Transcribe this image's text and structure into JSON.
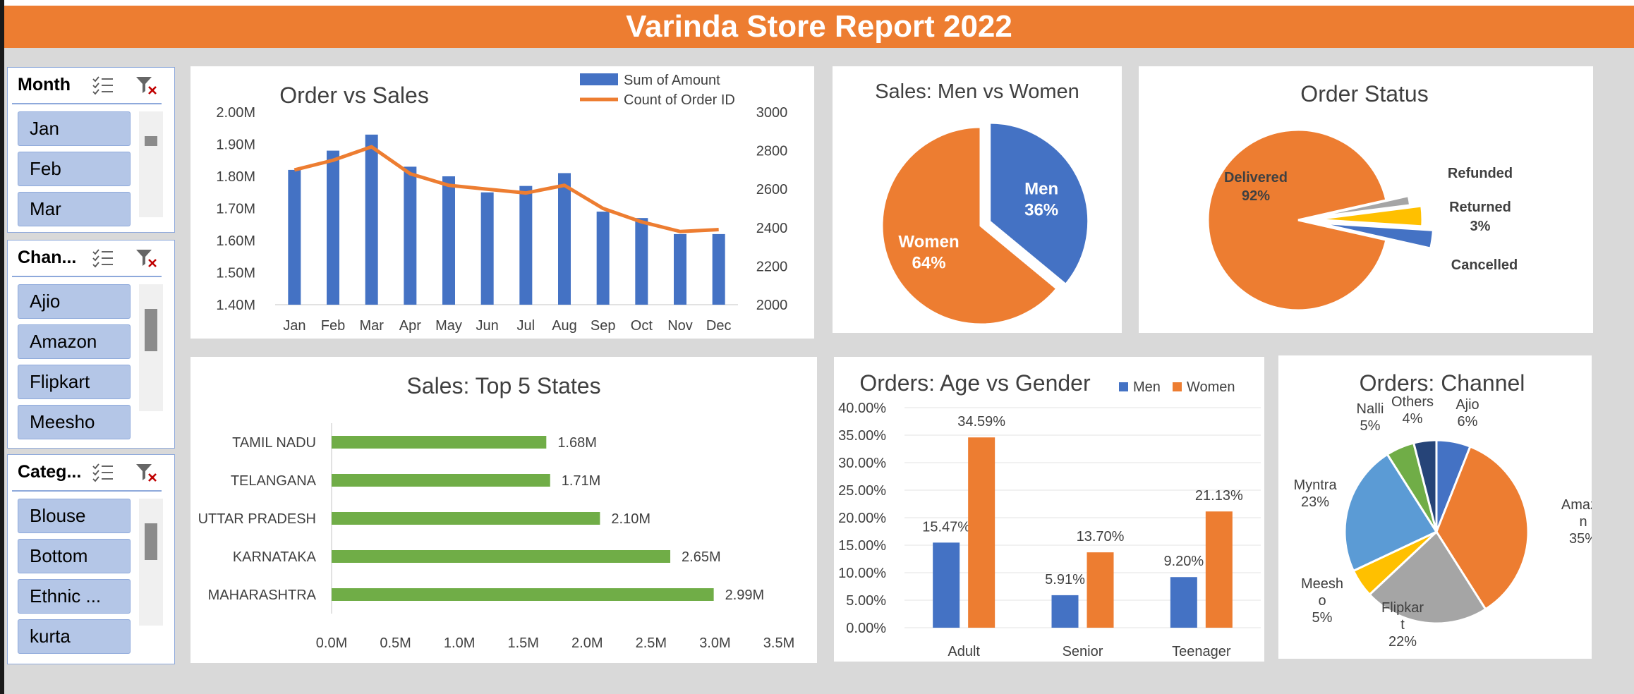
{
  "report_title": "Varinda Store Report 2022",
  "colors": {
    "accent": "#ed7d31",
    "blue": "#4472c4",
    "green": "#70ad47",
    "slicer_item": "#b4c6e7",
    "slicer_border": "#8ea9db"
  },
  "slicers": [
    {
      "title": "Month",
      "items": [
        "Jan",
        "Feb",
        "Mar"
      ],
      "icons": [
        "multi-select-icon",
        "clear-filter-icon"
      ]
    },
    {
      "title": "Chan...",
      "items": [
        "Ajio",
        "Amazon",
        "Flipkart",
        "Meesho"
      ],
      "icons": [
        "multi-select-icon",
        "clear-filter-icon"
      ]
    },
    {
      "title": "Categ...",
      "items": [
        "Blouse",
        "Bottom",
        "Ethnic ...",
        "kurta"
      ],
      "icons": [
        "multi-select-icon",
        "clear-filter-icon"
      ]
    }
  ],
  "chart_data": [
    {
      "id": "order-vs-sales",
      "type": "bar",
      "title": "Order vs Sales",
      "categories": [
        "Jan",
        "Feb",
        "Mar",
        "Apr",
        "May",
        "Jun",
        "Jul",
        "Aug",
        "Sep",
        "Oct",
        "Nov",
        "Dec"
      ],
      "series": [
        {
          "name": "Sum of Amount",
          "type": "bar",
          "axis": "left",
          "values": [
            1.82,
            1.88,
            1.93,
            1.83,
            1.8,
            1.75,
            1.77,
            1.81,
            1.69,
            1.67,
            1.62,
            1.62
          ]
        },
        {
          "name": "Count of Order ID",
          "type": "line",
          "axis": "right",
          "values": [
            2700,
            2750,
            2820,
            2680,
            2620,
            2600,
            2580,
            2620,
            2500,
            2430,
            2380,
            2390
          ]
        }
      ],
      "y_left_ticks": [
        "1.40M",
        "1.50M",
        "1.60M",
        "1.70M",
        "1.80M",
        "1.90M",
        "2.00M"
      ],
      "ylim_left": [
        1.4,
        2.0
      ],
      "y_right_ticks": [
        "2000",
        "2200",
        "2400",
        "2600",
        "2800",
        "3000"
      ],
      "ylim_right": [
        2000,
        3000
      ],
      "legend": "top-right"
    },
    {
      "id": "sales-men-women",
      "type": "pie",
      "title": "Sales: Men vs Women",
      "slices": [
        {
          "label": "Men",
          "pct_label": "36%",
          "value": 36
        },
        {
          "label": "Women",
          "pct_label": "64%",
          "value": 64
        }
      ]
    },
    {
      "id": "order-status",
      "type": "pie",
      "title": "Order Status",
      "slices": [
        {
          "label": "Delivered",
          "pct_label": "92%",
          "value": 92
        },
        {
          "label": "Refunded",
          "pct_label": "",
          "value": 1.5
        },
        {
          "label": "Returned",
          "pct_label": "3%",
          "value": 3
        },
        {
          "label": "Cancelled",
          "pct_label": "",
          "value": 2.5
        }
      ]
    },
    {
      "id": "sales-top-states",
      "type": "bar",
      "orientation": "horizontal",
      "title": "Sales: Top 5 States",
      "categories": [
        "TAMIL NADU",
        "TELANGANA",
        "UTTAR PRADESH",
        "KARNATAKA",
        "MAHARASHTRA"
      ],
      "values": [
        1.68,
        1.71,
        2.1,
        2.65,
        2.99
      ],
      "value_labels": [
        "1.68M",
        "1.71M",
        "2.10M",
        "2.65M",
        "2.99M"
      ],
      "x_ticks": [
        "0.0M",
        "0.5M",
        "1.0M",
        "1.5M",
        "2.0M",
        "2.5M",
        "3.0M",
        "3.5M"
      ],
      "xlim": [
        0,
        3.5
      ]
    },
    {
      "id": "orders-age-gender",
      "type": "bar",
      "title": "Orders: Age vs Gender",
      "categories": [
        "Adult",
        "Senior",
        "Teenager"
      ],
      "series": [
        {
          "name": "Men",
          "values": [
            15.47,
            5.91,
            9.2
          ],
          "labels": [
            "15.47%",
            "5.91%",
            "9.20%"
          ]
        },
        {
          "name": "Women",
          "values": [
            34.59,
            13.7,
            21.13
          ],
          "labels": [
            "34.59%",
            "13.70%",
            "21.13%"
          ]
        }
      ],
      "y_ticks": [
        "0.00%",
        "5.00%",
        "10.00%",
        "15.00%",
        "20.00%",
        "25.00%",
        "30.00%",
        "35.00%",
        "40.00%"
      ],
      "ylim": [
        0,
        40
      ],
      "legend": "top-right"
    },
    {
      "id": "orders-channel",
      "type": "pie",
      "title": "Orders: Channel",
      "slices": [
        {
          "label": "Ajio",
          "pct_label": "6%",
          "value": 6
        },
        {
          "label": "Amazo\nn",
          "pct_label": "35%",
          "value": 35
        },
        {
          "label": "Flipkar\nt",
          "pct_label": "22%",
          "value": 22
        },
        {
          "label": "Meesh\no",
          "pct_label": "5%",
          "value": 5
        },
        {
          "label": "Myntra",
          "pct_label": "23%",
          "value": 23
        },
        {
          "label": "Nalli",
          "pct_label": "5%",
          "value": 5
        },
        {
          "label": "Others",
          "pct_label": "4%",
          "value": 4
        }
      ]
    }
  ]
}
